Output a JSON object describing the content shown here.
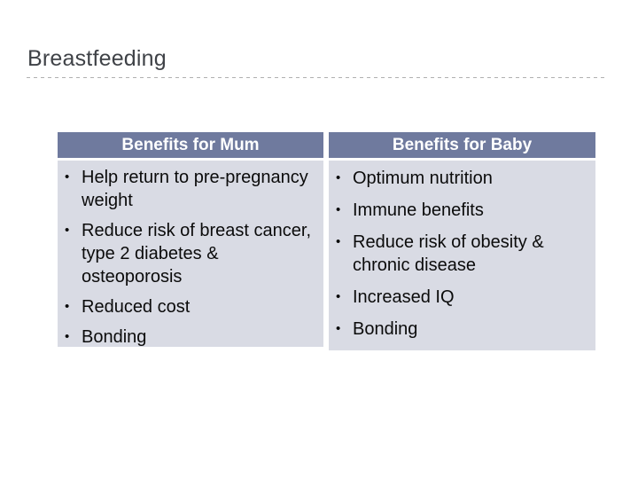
{
  "slide": {
    "title": "Breastfeeding"
  },
  "colors": {
    "header_bg": "#6f7a9e",
    "header_text": "#ffffff",
    "body_bg": "#d9dbe4",
    "body_text": "#0b0b0b",
    "title_text": "#3f4247",
    "divider": "#b0b0b0",
    "slide_bg": "#ffffff"
  },
  "table": {
    "bullet_glyph": "•",
    "columns": [
      {
        "header": "Benefits for Mum",
        "bullets": [
          "Help return to pre-pregnancy weight",
          "Reduce risk of breast cancer, type 2 diabetes & osteoporosis",
          "Reduced cost",
          "Bonding"
        ]
      },
      {
        "header": "Benefits for Baby",
        "bullets": [
          "Optimum nutrition",
          "Immune benefits",
          "Reduce risk of obesity & chronic disease",
          "Increased IQ",
          "Bonding"
        ]
      }
    ]
  }
}
